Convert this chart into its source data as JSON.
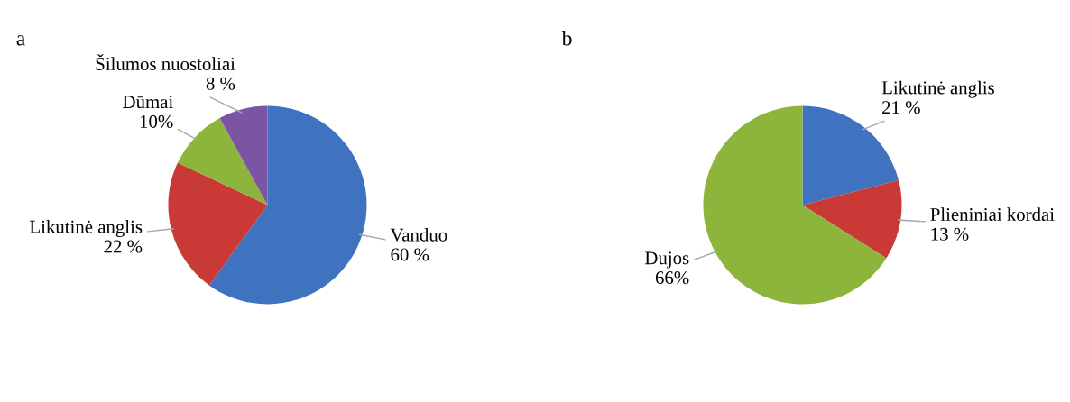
{
  "chart_data": [
    {
      "type": "pie",
      "title": "a",
      "categories": [
        "Vanduo",
        "Likutinė anglis",
        "Dūmai",
        "Šilumos nuostoliai"
      ],
      "values": [
        60,
        22,
        10,
        8
      ],
      "value_labels": [
        "60 %",
        "22 %",
        "10%",
        "8 %"
      ],
      "colors": [
        "#3f73c0",
        "#c93a36",
        "#8db53c",
        "#7b54a4"
      ],
      "legend": false
    },
    {
      "type": "pie",
      "title": "b",
      "categories": [
        "Likutinė anglis",
        "Plieniniai kordai",
        "Dujos"
      ],
      "values": [
        21,
        13,
        66
      ],
      "value_labels": [
        "21 %",
        "13 %",
        "66%"
      ],
      "colors": [
        "#3f73c0",
        "#c93a36",
        "#8db53c"
      ],
      "legend": false
    }
  ]
}
